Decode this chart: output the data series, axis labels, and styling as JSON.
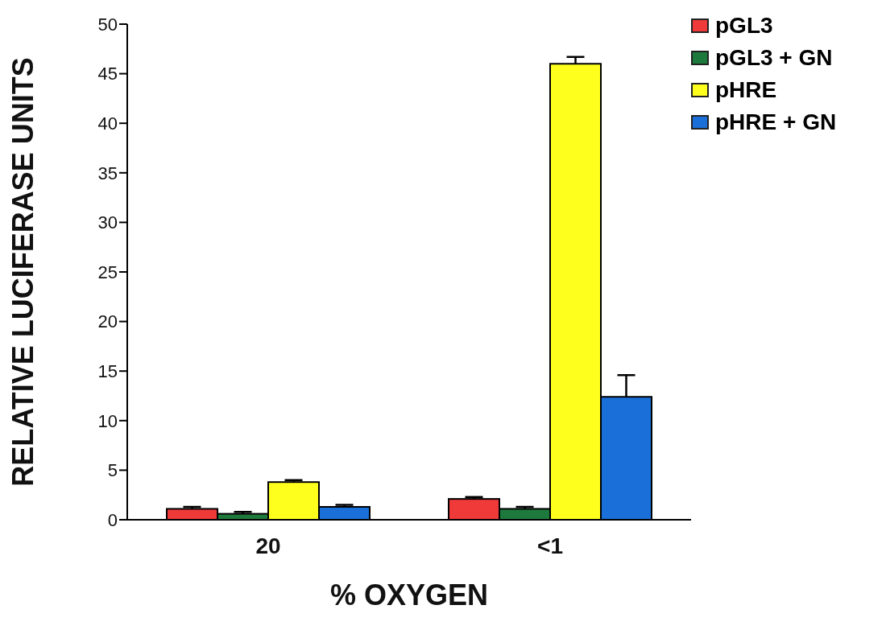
{
  "chart_data": {
    "type": "bar",
    "xlabel": "% OXYGEN",
    "ylabel": "RELATIVE LUCIFERASE UNITS",
    "categories": [
      "20",
      "<1"
    ],
    "series": [
      {
        "name": "pGL3",
        "color": "#f03a3a",
        "values": [
          1.1,
          2.1
        ],
        "errors": [
          [
            1.1,
            1.3
          ],
          [
            2.1,
            2.3
          ]
        ]
      },
      {
        "name": "pGL3 + GN",
        "color": "#1e7a3c",
        "values": [
          0.6,
          1.1
        ],
        "errors": [
          [
            0.6,
            0.8
          ],
          [
            1.1,
            1.3
          ]
        ]
      },
      {
        "name": "pHRE",
        "color": "#ffff1e",
        "values": [
          3.8,
          46.0
        ],
        "errors": [
          [
            3.8,
            4.0
          ],
          [
            46.0,
            46.7
          ]
        ]
      },
      {
        "name": "pHRE + GN",
        "color": "#1a6fd8",
        "values": [
          1.3,
          12.4
        ],
        "errors": [
          [
            1.3,
            1.5
          ],
          [
            12.4,
            14.6
          ]
        ]
      }
    ],
    "ylim": [
      0,
      50
    ],
    "yticks": [
      0,
      5,
      10,
      15,
      20,
      25,
      30,
      35,
      40,
      45,
      50
    ],
    "grid": false,
    "legend": "top right"
  }
}
